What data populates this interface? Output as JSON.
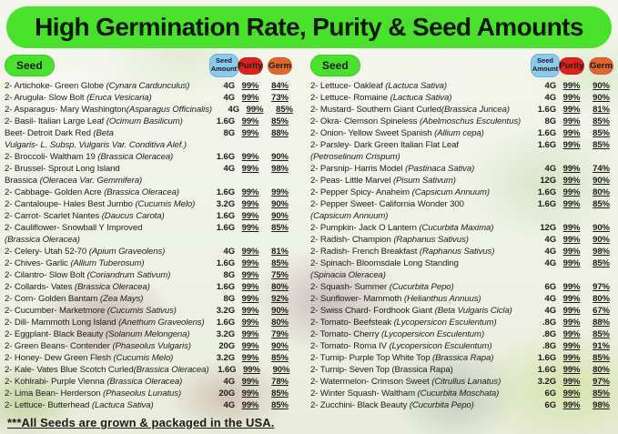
{
  "title": "High Germination Rate, Purity & Seed Amounts",
  "footer_note": "***All Seeds are grown & packaged in the USA.",
  "colors": {
    "banner_green": "#49e12c",
    "pill_blue": "#8cc9ee",
    "pill_red": "#e0231a",
    "pill_orange": "#e2672f",
    "text": "#1d1d1b"
  },
  "column_headers": {
    "seed": "Seed",
    "amount": "Seed Amount",
    "purity": "Purity",
    "germ": "Germ"
  },
  "columns": [
    {
      "side": "left",
      "rows": [
        {
          "name": [
            {
              "t": "2- Artichoke- Green Globe ",
              "i": false
            },
            {
              "t": "(Cynara Cardunculus)",
              "i": true
            }
          ],
          "amount": "4G",
          "purity": "99%",
          "germ": "84%"
        },
        {
          "name": [
            {
              "t": "2- Arugula- Slow Bolt ",
              "i": false
            },
            {
              "t": "(Eruca Vesicaria)",
              "i": true
            }
          ],
          "amount": "4G",
          "purity": "99%",
          "germ": "73%"
        },
        {
          "name": [
            {
              "t": "2- Asparagus- Mary Washington",
              "i": false
            },
            {
              "t": "(Asparagus Officinalis)",
              "i": true
            }
          ],
          "amount": "4G",
          "purity": "99%",
          "germ": "85%"
        },
        {
          "name": [
            {
              "t": "2- Basil- Italian Large Leaf ",
              "i": false
            },
            {
              "t": "(Ocimum Basilicum)",
              "i": true
            }
          ],
          "amount": "1.6G",
          "purity": "99%",
          "germ": "85%"
        },
        {
          "name": [
            {
              "t": "Beet- Detroit Dark Red ",
              "i": false
            },
            {
              "t": "(Beta",
              "i": true
            }
          ],
          "line2": [
            {
              "t": "Vulgaris- L. Subsp. Vulgaris Var. Conditiva Alef.)",
              "i": true
            }
          ],
          "amount": "8G",
          "purity": "99%",
          "germ": "88%"
        },
        {
          "name": [
            {
              "t": "2- Broccoli- Waltham 19 ",
              "i": false
            },
            {
              "t": "(Brassica Oleracea)",
              "i": true
            }
          ],
          "amount": "1.6G",
          "purity": "99%",
          "germ": "90%"
        },
        {
          "name": [
            {
              "t": "2- Brussel- Sprout Long Island",
              "i": false
            }
          ],
          "line2": [
            {
              "t": "Brassica ",
              "i": false
            },
            {
              "t": "(Oleracea Var. Gemmifera)",
              "i": true
            }
          ],
          "amount": "4G",
          "purity": "99%",
          "germ": "98%"
        },
        {
          "name": [
            {
              "t": "2- Cabbage- Golden Acre ",
              "i": false
            },
            {
              "t": "(Brassica Oleracea)",
              "i": true
            }
          ],
          "amount": "1.6G",
          "purity": "99%",
          "germ": "99%"
        },
        {
          "name": [
            {
              "t": "2- Cantaloupe- Hales Best Jumbo ",
              "i": false
            },
            {
              "t": "(Cucumis Melo)",
              "i": true
            }
          ],
          "amount": "3.2G",
          "purity": "99%",
          "germ": "90%"
        },
        {
          "name": [
            {
              "t": "2- Carrot- Scarlet Nantes ",
              "i": false
            },
            {
              "t": "(Daucus Carota)",
              "i": true
            }
          ],
          "amount": "1.6G",
          "purity": "99%",
          "germ": "90%"
        },
        {
          "name": [
            {
              "t": "2- Cauliflower- Snowball Y Improved",
              "i": false
            }
          ],
          "line2": [
            {
              "t": "(Brassica Oleracea)",
              "i": true
            }
          ],
          "amount": "1.6G",
          "purity": "99%",
          "germ": "85%"
        },
        {
          "name": [
            {
              "t": "2- Celery- Utah 52-70 ",
              "i": false
            },
            {
              "t": "(Apium Graveolens)",
              "i": true
            }
          ],
          "amount": "4G",
          "purity": "99%",
          "germ": "81%"
        },
        {
          "name": [
            {
              "t": "2- Chives- Garlic ",
              "i": false
            },
            {
              "t": "(Allium Tuberosum)",
              "i": true
            }
          ],
          "amount": "1.6G",
          "purity": "99%",
          "germ": "85%"
        },
        {
          "name": [
            {
              "t": "2- Cilantro- Slow Bolt ",
              "i": false
            },
            {
              "t": "(Coriandrum Sativum)",
              "i": true
            }
          ],
          "amount": "8G",
          "purity": "99%",
          "germ": "75%"
        },
        {
          "name": [
            {
              "t": "2- Collards- Vates ",
              "i": false
            },
            {
              "t": "(Brassica Oleracea)",
              "i": true
            }
          ],
          "amount": "1.6G",
          "purity": "99%",
          "germ": "80%"
        },
        {
          "name": [
            {
              "t": "2- Corn- Golden Bantam ",
              "i": false
            },
            {
              "t": "(Zea Mays)",
              "i": true
            }
          ],
          "amount": "8G",
          "purity": "99%",
          "germ": "92%"
        },
        {
          "name": [
            {
              "t": "2- Cucumber- Marketmore ",
              "i": false
            },
            {
              "t": "(Cucumis Sativus)",
              "i": true
            }
          ],
          "amount": "3.2G",
          "purity": "99%",
          "germ": "90%"
        },
        {
          "name": [
            {
              "t": "2- Dill- Mammoth Long Island ",
              "i": false
            },
            {
              "t": "(Anethum Graveolens)",
              "i": true
            }
          ],
          "amount": "1.6G",
          "purity": "99%",
          "germ": "80%"
        },
        {
          "name": [
            {
              "t": "2- Eggplant- Black Beauty ",
              "i": false
            },
            {
              "t": "(Solanum Melongena)",
              "i": true
            }
          ],
          "amount": "3.2G",
          "purity": "99%",
          "germ": "79%"
        },
        {
          "name": [
            {
              "t": "2- Green Beans- Contender ",
              "i": false
            },
            {
              "t": "(Phaseolus Vulgaris)",
              "i": true
            }
          ],
          "amount": "20G",
          "purity": "99%",
          "germ": "90%"
        },
        {
          "name": [
            {
              "t": "2- Honey- Dew Green Flesh ",
              "i": false
            },
            {
              "t": "(Cucumis Melo)",
              "i": true
            }
          ],
          "amount": "3.2G",
          "purity": "99%",
          "germ": "85%"
        },
        {
          "name": [
            {
              "t": "2- Kale- Vates Blue Scotch Curled",
              "i": false
            },
            {
              "t": "(Brassica Oleracea)",
              "i": true
            }
          ],
          "amount": "1.6G",
          "purity": "99%",
          "germ": "90%"
        },
        {
          "name": [
            {
              "t": "2- Kohlrabi- Purple Vienna ",
              "i": false
            },
            {
              "t": "(Brassica Oleracea)",
              "i": true
            }
          ],
          "amount": "4G",
          "purity": "99%",
          "germ": "78%"
        },
        {
          "name": [
            {
              "t": "2- Lima Bean- Herderson ",
              "i": false
            },
            {
              "t": "(Phaseolus Lunatus)",
              "i": true
            }
          ],
          "amount": "20G",
          "purity": "99%",
          "germ": "85%"
        },
        {
          "name": [
            {
              "t": "2- Lettuce- Butterhead ",
              "i": false
            },
            {
              "t": "(Lactuca Sativa)",
              "i": true
            }
          ],
          "amount": "4G",
          "purity": "99%",
          "germ": "85%"
        }
      ]
    },
    {
      "side": "right",
      "rows": [
        {
          "name": [
            {
              "t": "2- Lettuce- Oakleaf ",
              "i": false
            },
            {
              "t": "(Lactuca Sativa)",
              "i": true
            }
          ],
          "amount": "4G",
          "purity": "99%",
          "germ": "90%"
        },
        {
          "name": [
            {
              "t": "2- Lettuce- Romaine ",
              "i": false
            },
            {
              "t": "(Lactuca Sativa)",
              "i": true
            }
          ],
          "amount": "4G",
          "purity": "99%",
          "germ": "90%"
        },
        {
          "name": [
            {
              "t": "2- Mustard- Southern Giant Curled",
              "i": false
            },
            {
              "t": "(Brassica Juncea)",
              "i": true
            }
          ],
          "amount": "1.6G",
          "purity": "99%",
          "germ": "81%"
        },
        {
          "name": [
            {
              "t": "2- Okra- Clemson Spineless ",
              "i": false
            },
            {
              "t": "(Abelmoschus Esculentus)",
              "i": true
            }
          ],
          "amount": "8G",
          "purity": "99%",
          "germ": "85%"
        },
        {
          "name": [
            {
              "t": "2- Onion- Yellow Sweet Spanish ",
              "i": false
            },
            {
              "t": "(Allium cepa)",
              "i": true
            }
          ],
          "amount": "1.6G",
          "purity": "99%",
          "germ": "85%"
        },
        {
          "name": [
            {
              "t": "2- Parsley- Dark Green Italian Flat Leaf",
              "i": false
            }
          ],
          "line2": [
            {
              "t": "(Petroselinum Crispum)",
              "i": true
            }
          ],
          "amount": "1.6G",
          "purity": "99%",
          "germ": "85%"
        },
        {
          "name": [
            {
              "t": "2- Parsnip- Harris Model ",
              "i": false
            },
            {
              "t": "(Pastinaca Sativa)",
              "i": true
            }
          ],
          "amount": "4G",
          "purity": "99%",
          "germ": "74%"
        },
        {
          "name": [
            {
              "t": "2- Peas- Little Marvel ",
              "i": false
            },
            {
              "t": "(Pisum Sativum)",
              "i": true
            }
          ],
          "amount": "12G",
          "purity": "99%",
          "germ": "90%"
        },
        {
          "name": [
            {
              "t": "2- Pepper Spicy- Anaheim ",
              "i": false
            },
            {
              "t": "(Capsicum Annuum)",
              "i": true
            }
          ],
          "amount": "1.6G",
          "purity": "99%",
          "germ": "80%"
        },
        {
          "name": [
            {
              "t": "2- Pepper Sweet- California Wonder 300",
              "i": false
            }
          ],
          "line2": [
            {
              "t": "(Capsicum Annuum)",
              "i": true
            }
          ],
          "amount": "1.6G",
          "purity": "99%",
          "germ": "85%"
        },
        {
          "name": [
            {
              "t": "2- Pumpkin- Jack O Lantern ",
              "i": false
            },
            {
              "t": "(Cucurbita Maxima)",
              "i": true
            }
          ],
          "amount": "12G",
          "purity": "99%",
          "germ": "90%"
        },
        {
          "name": [
            {
              "t": "2- Radish- Champion ",
              "i": false
            },
            {
              "t": "(Raphanus Sativus)",
              "i": true
            }
          ],
          "amount": "4G",
          "purity": "99%",
          "germ": "90%"
        },
        {
          "name": [
            {
              "t": "2- Radish- French Breakfast ",
              "i": false
            },
            {
              "t": "(Raphanus Sativus)",
              "i": true
            }
          ],
          "amount": "4G",
          "purity": "99%",
          "germ": "98%"
        },
        {
          "name": [
            {
              "t": "2- Spinach- Bloomsdale Long Standing",
              "i": false
            }
          ],
          "line2": [
            {
              "t": "(Spinacia Oleracea)",
              "i": true
            }
          ],
          "amount": "4G",
          "purity": "99%",
          "germ": "85%"
        },
        {
          "name": [
            {
              "t": "2- Squash- Summer ",
              "i": false
            },
            {
              "t": "(Cucurbita Pepo)",
              "i": true
            }
          ],
          "amount": "6G",
          "purity": "99%",
          "germ": "97%"
        },
        {
          "name": [
            {
              "t": "2- Sunflower- Mammoth ",
              "i": false
            },
            {
              "t": "(Helianthus Annuus)",
              "i": true
            }
          ],
          "amount": "4G",
          "purity": "99%",
          "germ": "80%"
        },
        {
          "name": [
            {
              "t": "2- Swiss Chard- Fordhook Giant ",
              "i": false
            },
            {
              "t": "(Beta Vulgaris Cicla)",
              "i": true
            }
          ],
          "amount": "4G",
          "purity": "99%",
          "germ": "67%"
        },
        {
          "name": [
            {
              "t": "2- Tomato- Beefsteak ",
              "i": false
            },
            {
              "t": "(Lycopersicon Esculentum)",
              "i": true
            }
          ],
          "amount": ".8G",
          "purity": "99%",
          "germ": "88%"
        },
        {
          "name": [
            {
              "t": "2- Tomato- Cherry ",
              "i": false
            },
            {
              "t": "(Lycopersicon Esculentum)",
              "i": true
            }
          ],
          "amount": ".8G",
          "purity": "99%",
          "germ": "85%"
        },
        {
          "name": [
            {
              "t": "2- Tomato- Roma IV ",
              "i": false
            },
            {
              "t": "(Lycopersicon Esculentum)",
              "i": true
            }
          ],
          "amount": ".8G",
          "purity": "99%",
          "germ": "91%"
        },
        {
          "name": [
            {
              "t": "2- Turnip- Purple Top White Top ",
              "i": false
            },
            {
              "t": "(Brassica Rapa)",
              "i": true
            }
          ],
          "amount": "1.6G",
          "purity": "99%",
          "germ": "85%"
        },
        {
          "name": [
            {
              "t": "2- Turnip- Seven Top (Brassica Rapa)",
              "i": false
            }
          ],
          "amount": "1.6G",
          "purity": "99%",
          "germ": "80%"
        },
        {
          "name": [
            {
              "t": "2- Watermelon- Crimson Sweet ",
              "i": false
            },
            {
              "t": "(Citrullus Lanatus)",
              "i": true
            }
          ],
          "amount": "3.2G",
          "purity": "99%",
          "germ": "97%"
        },
        {
          "name": [
            {
              "t": "2- Winter Squash- Waltham ",
              "i": false
            },
            {
              "t": "(Cucurbita Moschata)",
              "i": true
            }
          ],
          "amount": "6G",
          "purity": "99%",
          "germ": "85%"
        },
        {
          "name": [
            {
              "t": "2- Zucchini- Black Beauty ",
              "i": false
            },
            {
              "t": "(Cucurbita Pepo)",
              "i": true
            }
          ],
          "amount": "6G",
          "purity": "99%",
          "germ": "98%"
        }
      ]
    }
  ]
}
